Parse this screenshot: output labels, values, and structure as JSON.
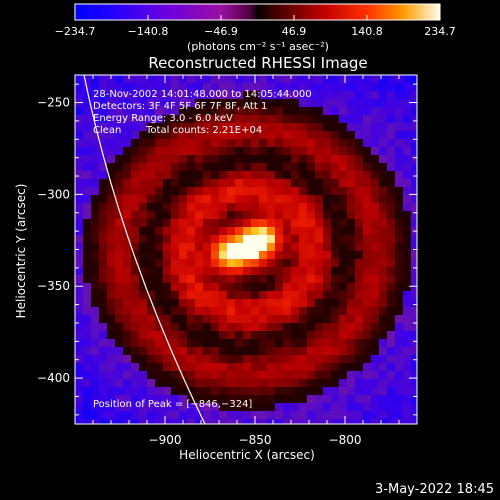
{
  "chart_data": {
    "type": "heatmap",
    "title": "Reconstructed RHESSI Image",
    "xlabel": "Heliocentric X (arcsec)",
    "ylabel": "Heliocentric Y (arcsec)",
    "xlim": [
      -950,
      -760
    ],
    "ylim": [
      -425,
      -235
    ],
    "x_ticks": [
      -900,
      -850,
      -800
    ],
    "x_tick_labels": [
      "−900",
      "−850",
      "−800"
    ],
    "y_ticks": [
      -250,
      -300,
      -350,
      -400
    ],
    "y_tick_labels": [
      "−250",
      "−300",
      "−350",
      "−400"
    ],
    "colorbar": {
      "range": [
        -234.7,
        234.7
      ],
      "tick_labels": [
        "−234.7",
        "−140.8",
        "−46.9",
        "46.9",
        "140.8",
        "234.7"
      ],
      "units": "(photons cm⁻² s⁻¹ asec⁻²)"
    },
    "annotations": {
      "time": "28-Nov-2002 14:01:48.000 to 14:05:44.000",
      "detectors": "Detectors: 3F 4F 5F 6F 7F 8F, Att 1",
      "energy": "Energy Range: 3.0 - 6.0 keV",
      "method": "Clean",
      "total_counts": "Total counts: 2.21E+04",
      "peak": "Position of Peak = [−846,−324]"
    },
    "peak_position": [
      -846,
      -324
    ],
    "sources": [
      {
        "x": -846,
        "y": -324,
        "peak_value": 234.7
      },
      {
        "x": -865,
        "y": -332,
        "peak_value": 215
      }
    ],
    "grid": false
  },
  "footer": {
    "date": "3-May-2022 18:45"
  }
}
